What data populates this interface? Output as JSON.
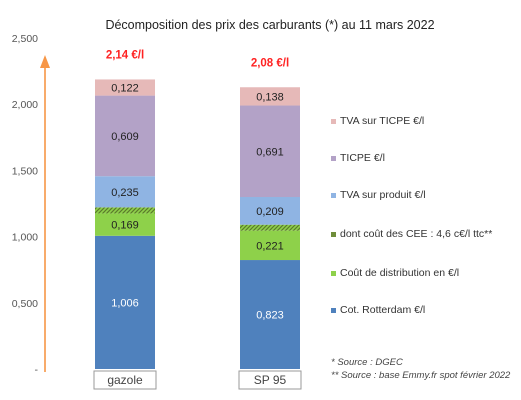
{
  "chart_data": {
    "type": "bar",
    "stacked": true,
    "title": "Décomposition des prix des carburants (*) au 11 mars 2022",
    "categories": [
      "gazole",
      "SP 95"
    ],
    "totals": [
      "2,14 €/l",
      "2,08 €/l"
    ],
    "ylim": [
      0,
      2.5
    ],
    "yticks": [
      {
        "value": 0,
        "label": "-"
      },
      {
        "value": 0.5,
        "label": "0,500"
      },
      {
        "value": 1.0,
        "label": "1,000"
      },
      {
        "value": 1.5,
        "label": "1,500"
      },
      {
        "value": 2.0,
        "label": "2,000"
      },
      {
        "value": 2.5,
        "label": "2,500"
      }
    ],
    "series": [
      {
        "name": "Cot. Rotterdam €/l",
        "color": "#4f81bd",
        "values": [
          1.006,
          0.823
        ],
        "labels": [
          "1,006",
          "0,823"
        ]
      },
      {
        "name": "Coût de distribution en €/l",
        "color": "#8ed14a",
        "values": [
          0.169,
          0.221
        ],
        "labels": [
          "0,169",
          "0,221"
        ]
      },
      {
        "name": "dont coût des CEE : 4,6 c€/l ttc**",
        "color": "#6f8d3a",
        "values": [
          0.046,
          0.046
        ],
        "labels": [
          "",
          ""
        ],
        "hatched": true
      },
      {
        "name": "TVA sur produit €/l",
        "color": "#8fb4e3",
        "values": [
          0.235,
          0.209
        ],
        "labels": [
          "0,235",
          "0,209"
        ]
      },
      {
        "name": "TICPE €/l",
        "color": "#b3a2c7",
        "values": [
          0.609,
          0.691
        ],
        "labels": [
          "0,609",
          "0,691"
        ]
      },
      {
        "name": "TVA sur TICPE €/l",
        "color": "#e6b9b8",
        "values": [
          0.122,
          0.138
        ],
        "labels": [
          "0,122",
          "0,138"
        ]
      }
    ],
    "legend_order": [
      5,
      4,
      3,
      2,
      1,
      0
    ],
    "legend_position": "right",
    "arrow_color": "#f79646",
    "total_color": "#ff2222",
    "sources": [
      "* Source : DGEC",
      "** Source : base Emmy.fr spot février 2022"
    ]
  }
}
